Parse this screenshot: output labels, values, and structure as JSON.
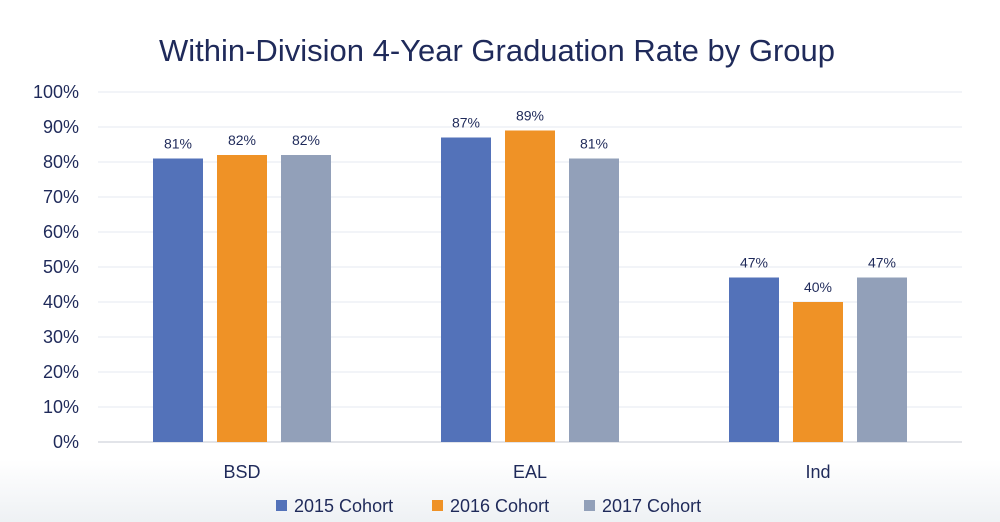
{
  "chart_data": {
    "type": "bar",
    "title": "Within-Division 4-Year Graduation Rate by Group",
    "categories": [
      "BSD",
      "EAL",
      "Ind"
    ],
    "series": [
      {
        "name": "2015 Cohort",
        "values": [
          81,
          87,
          47
        ],
        "color": "#5372b9"
      },
      {
        "name": "2016 Cohort",
        "values": [
          82,
          89,
          40
        ],
        "color": "#ef9226"
      },
      {
        "name": "2017 Cohort",
        "values": [
          82,
          81,
          47
        ],
        "color": "#92a0b9"
      }
    ],
    "data_labels": [
      [
        "81%",
        "87%",
        "47%"
      ],
      [
        "82%",
        "89%",
        "40%"
      ],
      [
        "82%",
        "81%",
        "47%"
      ]
    ],
    "yticks": [
      "0%",
      "10%",
      "20%",
      "30%",
      "40%",
      "50%",
      "60%",
      "70%",
      "80%",
      "90%",
      "100%"
    ],
    "ylim": [
      0,
      100
    ],
    "xlabel": "",
    "ylabel": "",
    "grid": true,
    "legend_position": "bottom"
  }
}
